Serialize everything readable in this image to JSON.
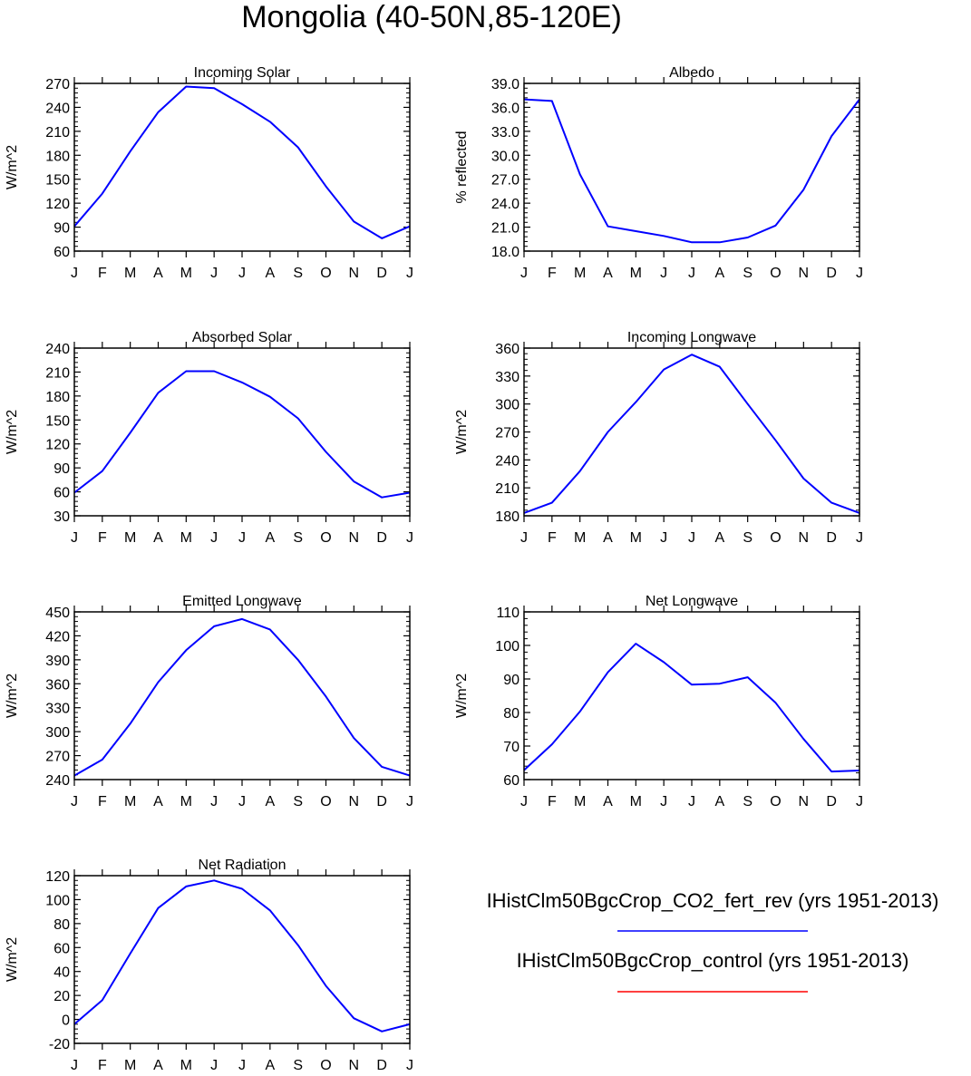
{
  "page": {
    "title": "Mongolia (40-50N,85-120E)"
  },
  "legend": {
    "entries": [
      {
        "label": "IHistClm50BgcCrop_CO2_fert_rev (yrs 1951-2013)",
        "color": "#0000ff"
      },
      {
        "label": "IHistClm50BgcCrop_control (yrs 1951-2013)",
        "color": "#ff0000"
      }
    ]
  },
  "chart_data": [
    {
      "type": "line",
      "title": "Incoming Solar",
      "ylabel": "W/m^2",
      "x": [
        "J",
        "F",
        "M",
        "A",
        "M",
        "J",
        "J",
        "A",
        "S",
        "O",
        "N",
        "D",
        "J"
      ],
      "ylim": [
        60,
        270
      ],
      "yticks": [
        "60",
        "90",
        "120",
        "150",
        "180",
        "210",
        "240",
        "270"
      ],
      "series": [
        {
          "values": [
            91,
            132,
            185,
            234,
            266,
            264,
            244,
            222,
            190,
            141,
            97,
            76,
            91
          ]
        }
      ]
    },
    {
      "type": "line",
      "title": "Albedo",
      "ylabel": "% reflected",
      "x": [
        "J",
        "F",
        "M",
        "A",
        "M",
        "J",
        "J",
        "A",
        "S",
        "O",
        "N",
        "D",
        "J"
      ],
      "ylim": [
        18.0,
        39.0
      ],
      "yticks": [
        "18.0",
        "21.0",
        "24.0",
        "27.0",
        "30.0",
        "33.0",
        "36.0",
        "39.0"
      ],
      "series": [
        {
          "values": [
            37.0,
            36.8,
            27.6,
            21.1,
            20.5,
            19.9,
            19.1,
            19.1,
            19.7,
            21.2,
            25.7,
            32.4,
            37.0
          ]
        }
      ]
    },
    {
      "type": "line",
      "title": "Absorbed Solar",
      "ylabel": "W/m^2",
      "x": [
        "J",
        "F",
        "M",
        "A",
        "M",
        "J",
        "J",
        "A",
        "S",
        "O",
        "N",
        "D",
        "J"
      ],
      "ylim": [
        30,
        240
      ],
      "yticks": [
        "30",
        "60",
        "90",
        "120",
        "150",
        "180",
        "210",
        "240"
      ],
      "series": [
        {
          "values": [
            59,
            86,
            134,
            184,
            211,
            211,
            197,
            179,
            152,
            110,
            73,
            53,
            59
          ]
        }
      ]
    },
    {
      "type": "line",
      "title": "Incoming Longwave",
      "ylabel": "W/m^2",
      "x": [
        "J",
        "F",
        "M",
        "A",
        "M",
        "J",
        "J",
        "A",
        "S",
        "O",
        "N",
        "D",
        "J"
      ],
      "ylim": [
        180,
        360
      ],
      "yticks": [
        "180",
        "210",
        "240",
        "270",
        "300",
        "330",
        "360"
      ],
      "series": [
        {
          "values": [
            183,
            194,
            228,
            270,
            302,
            337,
            353,
            340,
            300,
            261,
            220,
            194,
            183
          ]
        }
      ]
    },
    {
      "type": "line",
      "title": "Emitted Longwave",
      "ylabel": "W/m^2",
      "x": [
        "J",
        "F",
        "M",
        "A",
        "M",
        "J",
        "J",
        "A",
        "S",
        "O",
        "N",
        "D",
        "J"
      ],
      "ylim": [
        240,
        450
      ],
      "yticks": [
        "240",
        "270",
        "300",
        "330",
        "360",
        "390",
        "420",
        "450"
      ],
      "series": [
        {
          "values": [
            245,
            265,
            310,
            362,
            402,
            432,
            441,
            428,
            390,
            344,
            292,
            256,
            245
          ]
        }
      ]
    },
    {
      "type": "line",
      "title": "Net Longwave",
      "ylabel": "W/m^2",
      "x": [
        "J",
        "F",
        "M",
        "A",
        "M",
        "J",
        "J",
        "A",
        "S",
        "O",
        "N",
        "D",
        "J"
      ],
      "ylim": [
        60,
        110
      ],
      "yticks": [
        "60",
        "70",
        "80",
        "90",
        "100",
        "110"
      ],
      "series": [
        {
          "values": [
            62.8,
            70.5,
            80.3,
            92.0,
            100.5,
            95.0,
            88.3,
            88.6,
            90.5,
            82.9,
            72.1,
            62.4,
            62.7
          ]
        }
      ]
    },
    {
      "type": "line",
      "title": "Net Radiation",
      "ylabel": "W/m^2",
      "x": [
        "J",
        "F",
        "M",
        "A",
        "M",
        "J",
        "J",
        "A",
        "S",
        "O",
        "N",
        "D",
        "J"
      ],
      "ylim": [
        -20,
        120
      ],
      "yticks": [
        "-20",
        "0",
        "20",
        "40",
        "60",
        "80",
        "100",
        "120"
      ],
      "series": [
        {
          "values": [
            -4,
            16,
            55,
            93,
            111,
            116,
            109,
            91,
            62,
            28,
            1,
            -10,
            -4
          ]
        }
      ]
    }
  ]
}
